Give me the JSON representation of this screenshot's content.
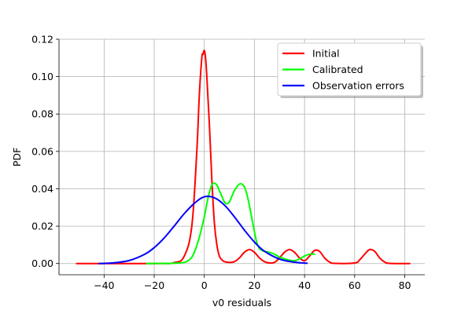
{
  "chart_data": {
    "type": "line",
    "title": "",
    "xlabel": "v0 residuals",
    "ylabel": "PDF",
    "xlim": [
      -58,
      88
    ],
    "ylim": [
      -0.006,
      0.12
    ],
    "xticks": [
      -40,
      -20,
      0,
      20,
      40,
      60,
      80
    ],
    "xtick_labels": [
      "−40",
      "−20",
      "0",
      "20",
      "40",
      "60",
      "80"
    ],
    "yticks": [
      0.0,
      0.02,
      0.04,
      0.06,
      0.08,
      0.1,
      0.12
    ],
    "ytick_labels": [
      "0.00",
      "0.02",
      "0.04",
      "0.06",
      "0.08",
      "0.10",
      "0.12"
    ],
    "grid": true,
    "legend_position": "top-right",
    "series": [
      {
        "name": "Initial",
        "color": "#ff0000",
        "x": [
          -51,
          -20,
          -12,
          -8,
          -5,
          -3,
          -2,
          -1,
          -0.5,
          0,
          0.5,
          1,
          2,
          3,
          4,
          5,
          6,
          7,
          8,
          10,
          12,
          14,
          16,
          18,
          20,
          22,
          24,
          26,
          28,
          30,
          32,
          34,
          36,
          38,
          40,
          42,
          44,
          46,
          48,
          50,
          52,
          60,
          62,
          64,
          66,
          68,
          70,
          72,
          74,
          82
        ],
        "y": [
          0,
          0,
          0.0005,
          0.004,
          0.02,
          0.06,
          0.09,
          0.11,
          0.112,
          0.114,
          0.11,
          0.1,
          0.075,
          0.045,
          0.022,
          0.01,
          0.004,
          0.002,
          0.001,
          0.0006,
          0.001,
          0.003,
          0.006,
          0.0075,
          0.006,
          0.003,
          0.001,
          0.0003,
          0.0006,
          0.003,
          0.006,
          0.0075,
          0.006,
          0.003,
          0.0015,
          0.004,
          0.007,
          0.0065,
          0.003,
          0.0008,
          0.0001,
          0.0003,
          0.002,
          0.005,
          0.0075,
          0.0065,
          0.003,
          0.0008,
          0.0001,
          0
        ]
      },
      {
        "name": "Calibrated",
        "color": "#00ff00",
        "x": [
          -23,
          -10,
          -6,
          -4,
          -2,
          0,
          1,
          2,
          3,
          4,
          5,
          6,
          7,
          8,
          9,
          10,
          11,
          12,
          13,
          14,
          15,
          16,
          17,
          18,
          19,
          20,
          21,
          22,
          23,
          24,
          26,
          28,
          30,
          32,
          34,
          36,
          38,
          40,
          42,
          44
        ],
        "y": [
          0,
          0.0003,
          0.002,
          0.006,
          0.014,
          0.025,
          0.032,
          0.038,
          0.042,
          0.043,
          0.042,
          0.039,
          0.036,
          0.033,
          0.032,
          0.033,
          0.036,
          0.039,
          0.041,
          0.0425,
          0.0425,
          0.041,
          0.037,
          0.031,
          0.024,
          0.017,
          0.011,
          0.008,
          0.007,
          0.0065,
          0.006,
          0.005,
          0.0035,
          0.0025,
          0.0018,
          0.0015,
          0.0025,
          0.004,
          0.005,
          0.005
        ]
      },
      {
        "name": "Observation errors",
        "color": "#0000ff",
        "x": [
          -42,
          -36,
          -30,
          -24,
          -20,
          -16,
          -12,
          -8,
          -4,
          0,
          4,
          8,
          12,
          16,
          20,
          24,
          30,
          36,
          41
        ],
        "y": [
          0,
          0.0004,
          0.0016,
          0.0048,
          0.0085,
          0.0137,
          0.0201,
          0.0267,
          0.0322,
          0.0357,
          0.0352,
          0.0313,
          0.025,
          0.0179,
          0.0115,
          0.0066,
          0.0024,
          0.0007,
          0.0002
        ]
      }
    ]
  }
}
